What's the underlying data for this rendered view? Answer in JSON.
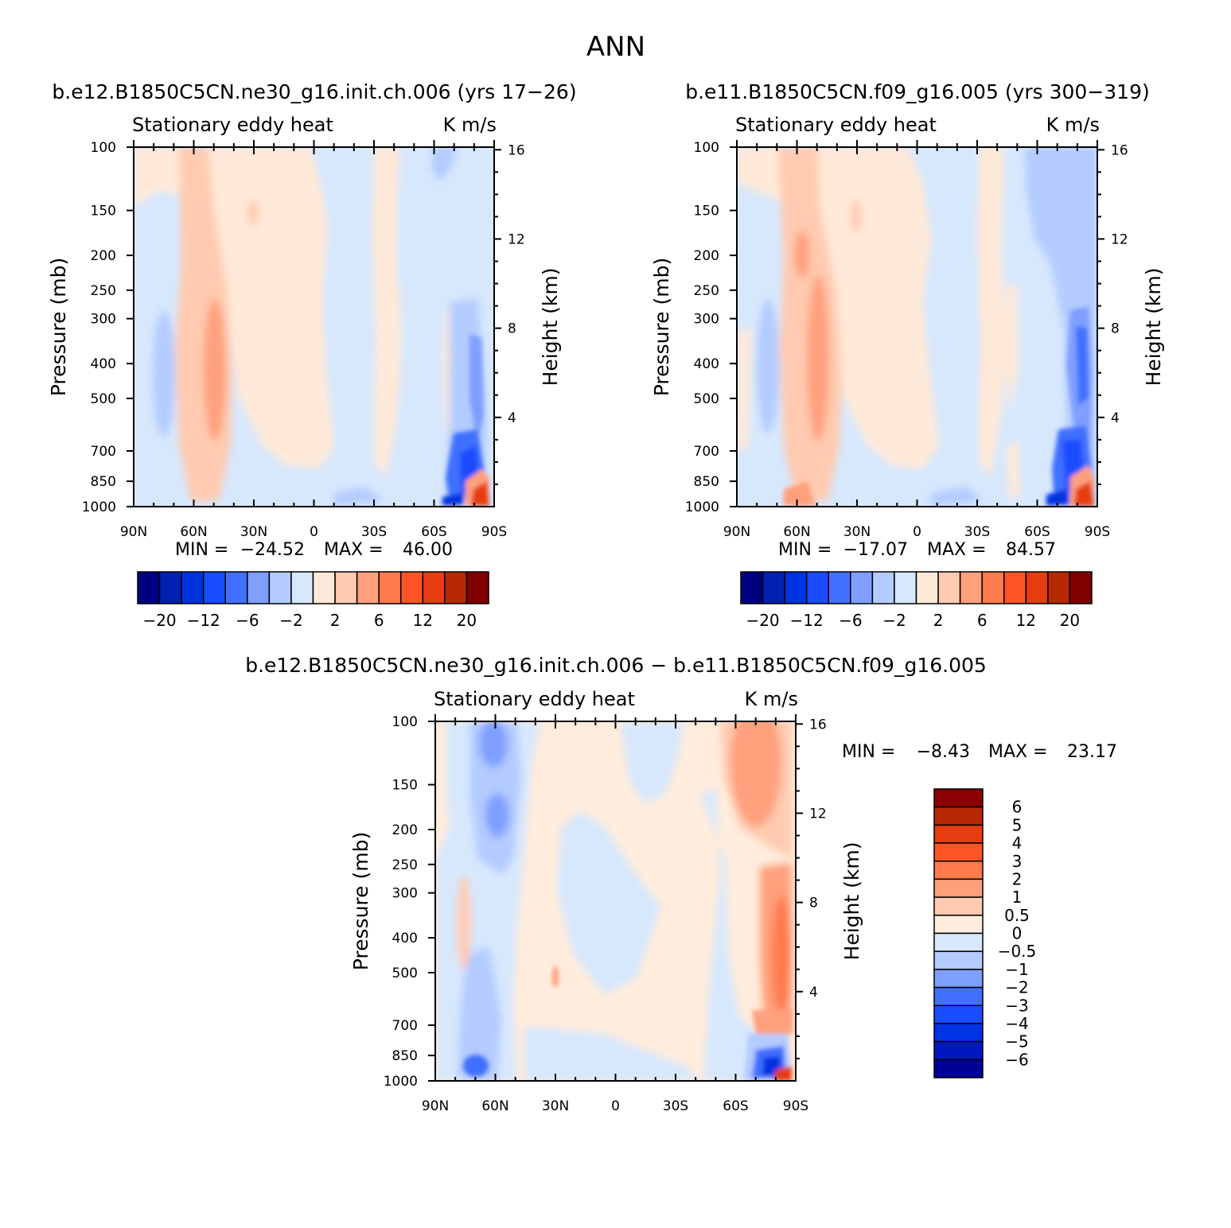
{
  "title": "ANN",
  "colors": {
    "main_scale": [
      "#000080",
      "#0021b3",
      "#0033e0",
      "#1a4cff",
      "#4170ff",
      "#7f9fff",
      "#b3cbff",
      "#d7e8fd",
      "#ffe9d8",
      "#ffcab0",
      "#ffa07d",
      "#ff7a4d",
      "#ff5526",
      "#e53c10",
      "#b82804",
      "#800000"
    ],
    "diff_scale": [
      "#000099",
      "#0018c0",
      "#0032e6",
      "#1a4cff",
      "#4170ff",
      "#7f9fff",
      "#b3cbff",
      "#d7e8fd",
      "#ffecdc",
      "#ffcab0",
      "#ffa07d",
      "#ff7a4d",
      "#ff5526",
      "#e53c10",
      "#b82804",
      "#8b0000"
    ]
  },
  "chart_data": [
    {
      "type": "heatmap",
      "title": "b.e12.B1850C5CN.ne30_g16.init.ch.006 (yrs 17−26)",
      "left_label": "Stationary eddy heat",
      "right_label": "K m/s",
      "xlabel": "",
      "ylabel": "Pressure (mb)",
      "y2label": "Height (km)",
      "xticks": [
        "90N",
        "60N",
        "30N",
        "0",
        "30S",
        "60S",
        "90S"
      ],
      "yticks": [
        "100",
        "150",
        "200",
        "250",
        "300",
        "400",
        "500",
        "700",
        "850",
        "1000"
      ],
      "y2ticks": [
        "16",
        "12",
        "8",
        "4"
      ],
      "ylim": [
        1000,
        100
      ],
      "min_label": "MIN =",
      "min": "−24.52",
      "max_label": "MAX =",
      "max": "46.00",
      "colorbar": {
        "orientation": "horizontal",
        "tick_labels": [
          "−20",
          "−12",
          "−6",
          "−2",
          "2",
          "6",
          "12",
          "20"
        ]
      }
    },
    {
      "type": "heatmap",
      "title": "b.e11.B1850C5CN.f09_g16.005 (yrs 300−319)",
      "left_label": "Stationary eddy heat",
      "right_label": "K m/s",
      "xlabel": "",
      "ylabel": "Pressure (mb)",
      "y2label": "Height (km)",
      "xticks": [
        "90N",
        "60N",
        "30N",
        "0",
        "30S",
        "60S",
        "90S"
      ],
      "yticks": [
        "100",
        "150",
        "200",
        "250",
        "300",
        "400",
        "500",
        "700",
        "850",
        "1000"
      ],
      "y2ticks": [
        "16",
        "12",
        "8",
        "4"
      ],
      "ylim": [
        1000,
        100
      ],
      "min_label": "MIN =",
      "min": "−17.07",
      "max_label": "MAX =",
      "max": "84.57",
      "colorbar": {
        "orientation": "horizontal",
        "tick_labels": [
          "−20",
          "−12",
          "−6",
          "−2",
          "2",
          "6",
          "12",
          "20"
        ]
      }
    },
    {
      "type": "heatmap",
      "title": "b.e12.B1850C5CN.ne30_g16.init.ch.006 − b.e11.B1850C5CN.f09_g16.005",
      "left_label": "Stationary eddy heat",
      "right_label": "K m/s",
      "xlabel": "",
      "ylabel": "Pressure (mb)",
      "y2label": "Height (km)",
      "xticks": [
        "90N",
        "60N",
        "30N",
        "0",
        "30S",
        "60S",
        "90S"
      ],
      "yticks": [
        "100",
        "150",
        "200",
        "250",
        "300",
        "400",
        "500",
        "700",
        "850",
        "1000"
      ],
      "y2ticks": [
        "16",
        "12",
        "8",
        "4"
      ],
      "ylim": [
        1000,
        100
      ],
      "min_label": "MIN =",
      "min": "−8.43",
      "max_label": "MAX =",
      "max": "23.17",
      "colorbar": {
        "orientation": "vertical",
        "tick_labels": [
          "6",
          "5",
          "4",
          "3",
          "2",
          "1",
          "0.5",
          "0",
          "−0.5",
          "−1",
          "−2",
          "−3",
          "−4",
          "−5",
          "−6"
        ]
      }
    }
  ]
}
